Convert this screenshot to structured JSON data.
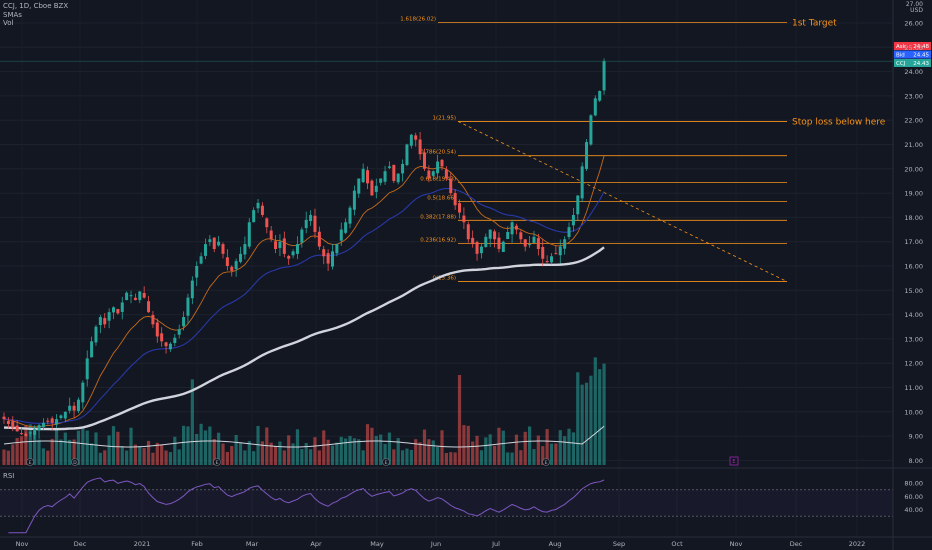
{
  "header": {
    "symbol_line": "CCJ, 1D, Cboe BZX",
    "sma_label": "SMAs",
    "vol_label": "Vol",
    "currency": "USD",
    "currency_top": "27.00"
  },
  "rsi_label": "RSI",
  "annotations": {
    "target": "1st Target",
    "stop": "Stop loss below here"
  },
  "price_badges": [
    {
      "tag": "Ask",
      "value": "24.48",
      "color": "#f23645"
    },
    {
      "tag": "Bid",
      "value": "24.45",
      "color": "#2962ff"
    },
    {
      "tag": "CCJ",
      "value": "24.43",
      "color": "#26a69a"
    }
  ],
  "colors": {
    "up": "#26a69a",
    "down": "#ef5350",
    "fib": "#f7931a",
    "sma200": "#d1d4dc",
    "sma50": "#2838a8",
    "sma20": "#c46a1a",
    "rsi": "#7e57c2"
  },
  "chart_data": {
    "type": "candlestick",
    "y_axis_ticks": [
      "26.00",
      "25.00",
      "24.00",
      "23.00",
      "22.00",
      "21.00",
      "20.00",
      "19.00",
      "18.00",
      "17.00",
      "16.00",
      "15.00",
      "14.00",
      "13.00",
      "12.00",
      "11.00",
      "10.00",
      "9.00",
      "8.00"
    ],
    "x_axis_ticks": [
      "Nov",
      "Dec",
      "2021",
      "Feb",
      "Mar",
      "Apr",
      "May",
      "Jun",
      "Jul",
      "Aug",
      "Sep",
      "Oct",
      "Nov",
      "Dec",
      "2022"
    ],
    "rsi_ticks": [
      "80.00",
      "60.00",
      "40.00"
    ],
    "rsi_levels": [
      70,
      30
    ],
    "fib_levels": [
      {
        "label": "1.618(26.02)",
        "value": 26.02
      },
      {
        "label": "1(21.95)",
        "value": 21.95
      },
      {
        "label": "0.786(20.54)",
        "value": 20.54
      },
      {
        "label": "0.618(19.43)",
        "value": 19.43
      },
      {
        "label": "0.5(18.66)",
        "value": 18.66
      },
      {
        "label": "0.382(17.88)",
        "value": 17.88
      },
      {
        "label": "0.236(16.92)",
        "value": 16.92
      },
      {
        "label": "0(15.36)",
        "value": 15.36
      }
    ],
    "last_price": 24.43,
    "trendline": {
      "from": 21.95,
      "to": 15.36
    },
    "closes": [
      9.7,
      9.5,
      9.35,
      9.2,
      9.1,
      9.0,
      9.15,
      9.3,
      9.45,
      9.55,
      9.6,
      9.55,
      9.7,
      9.85,
      10.0,
      10.25,
      10.05,
      10.5,
      11.2,
      12.2,
      12.9,
      13.5,
      13.9,
      13.6,
      14.1,
      14.3,
      14.05,
      14.5,
      14.9,
      14.8,
      14.6,
      14.95,
      14.7,
      14.1,
      13.6,
      13.1,
      12.9,
      12.7,
      12.8,
      13.05,
      13.4,
      13.9,
      14.7,
      15.4,
      16.0,
      16.4,
      16.9,
      17.1,
      16.7,
      17.0,
      16.5,
      16.0,
      15.8,
      16.2,
      16.5,
      16.9,
      17.8,
      18.3,
      18.6,
      18.1,
      17.6,
      17.1,
      16.7,
      17.0,
      16.5,
      16.3,
      16.6,
      16.9,
      17.5,
      17.9,
      18.1,
      17.4,
      16.8,
      16.4,
      16.1,
      16.6,
      16.9,
      17.5,
      17.8,
      18.4,
      19.1,
      19.6,
      20.0,
      19.4,
      18.9,
      19.3,
      19.6,
      19.9,
      20.1,
      19.5,
      19.8,
      20.2,
      21.0,
      21.4,
      21.2,
      20.6,
      20.0,
      19.6,
      19.9,
      20.3,
      20.1,
      19.6,
      19.0,
      18.5,
      18.2,
      17.8,
      17.1,
      16.9,
      16.5,
      16.8,
      17.2,
      17.5,
      17.1,
      16.7,
      17.0,
      17.4,
      17.8,
      17.5,
      17.1,
      16.8,
      16.9,
      17.2,
      16.7,
      16.3,
      16.2,
      16.4,
      16.5,
      16.8,
      17.1,
      17.6,
      18.1,
      18.9,
      20.1,
      21.1,
      22.2,
      22.9,
      23.2,
      24.43
    ],
    "sma_periods": [
      20,
      50,
      200
    ],
    "rsi_period": 14
  }
}
